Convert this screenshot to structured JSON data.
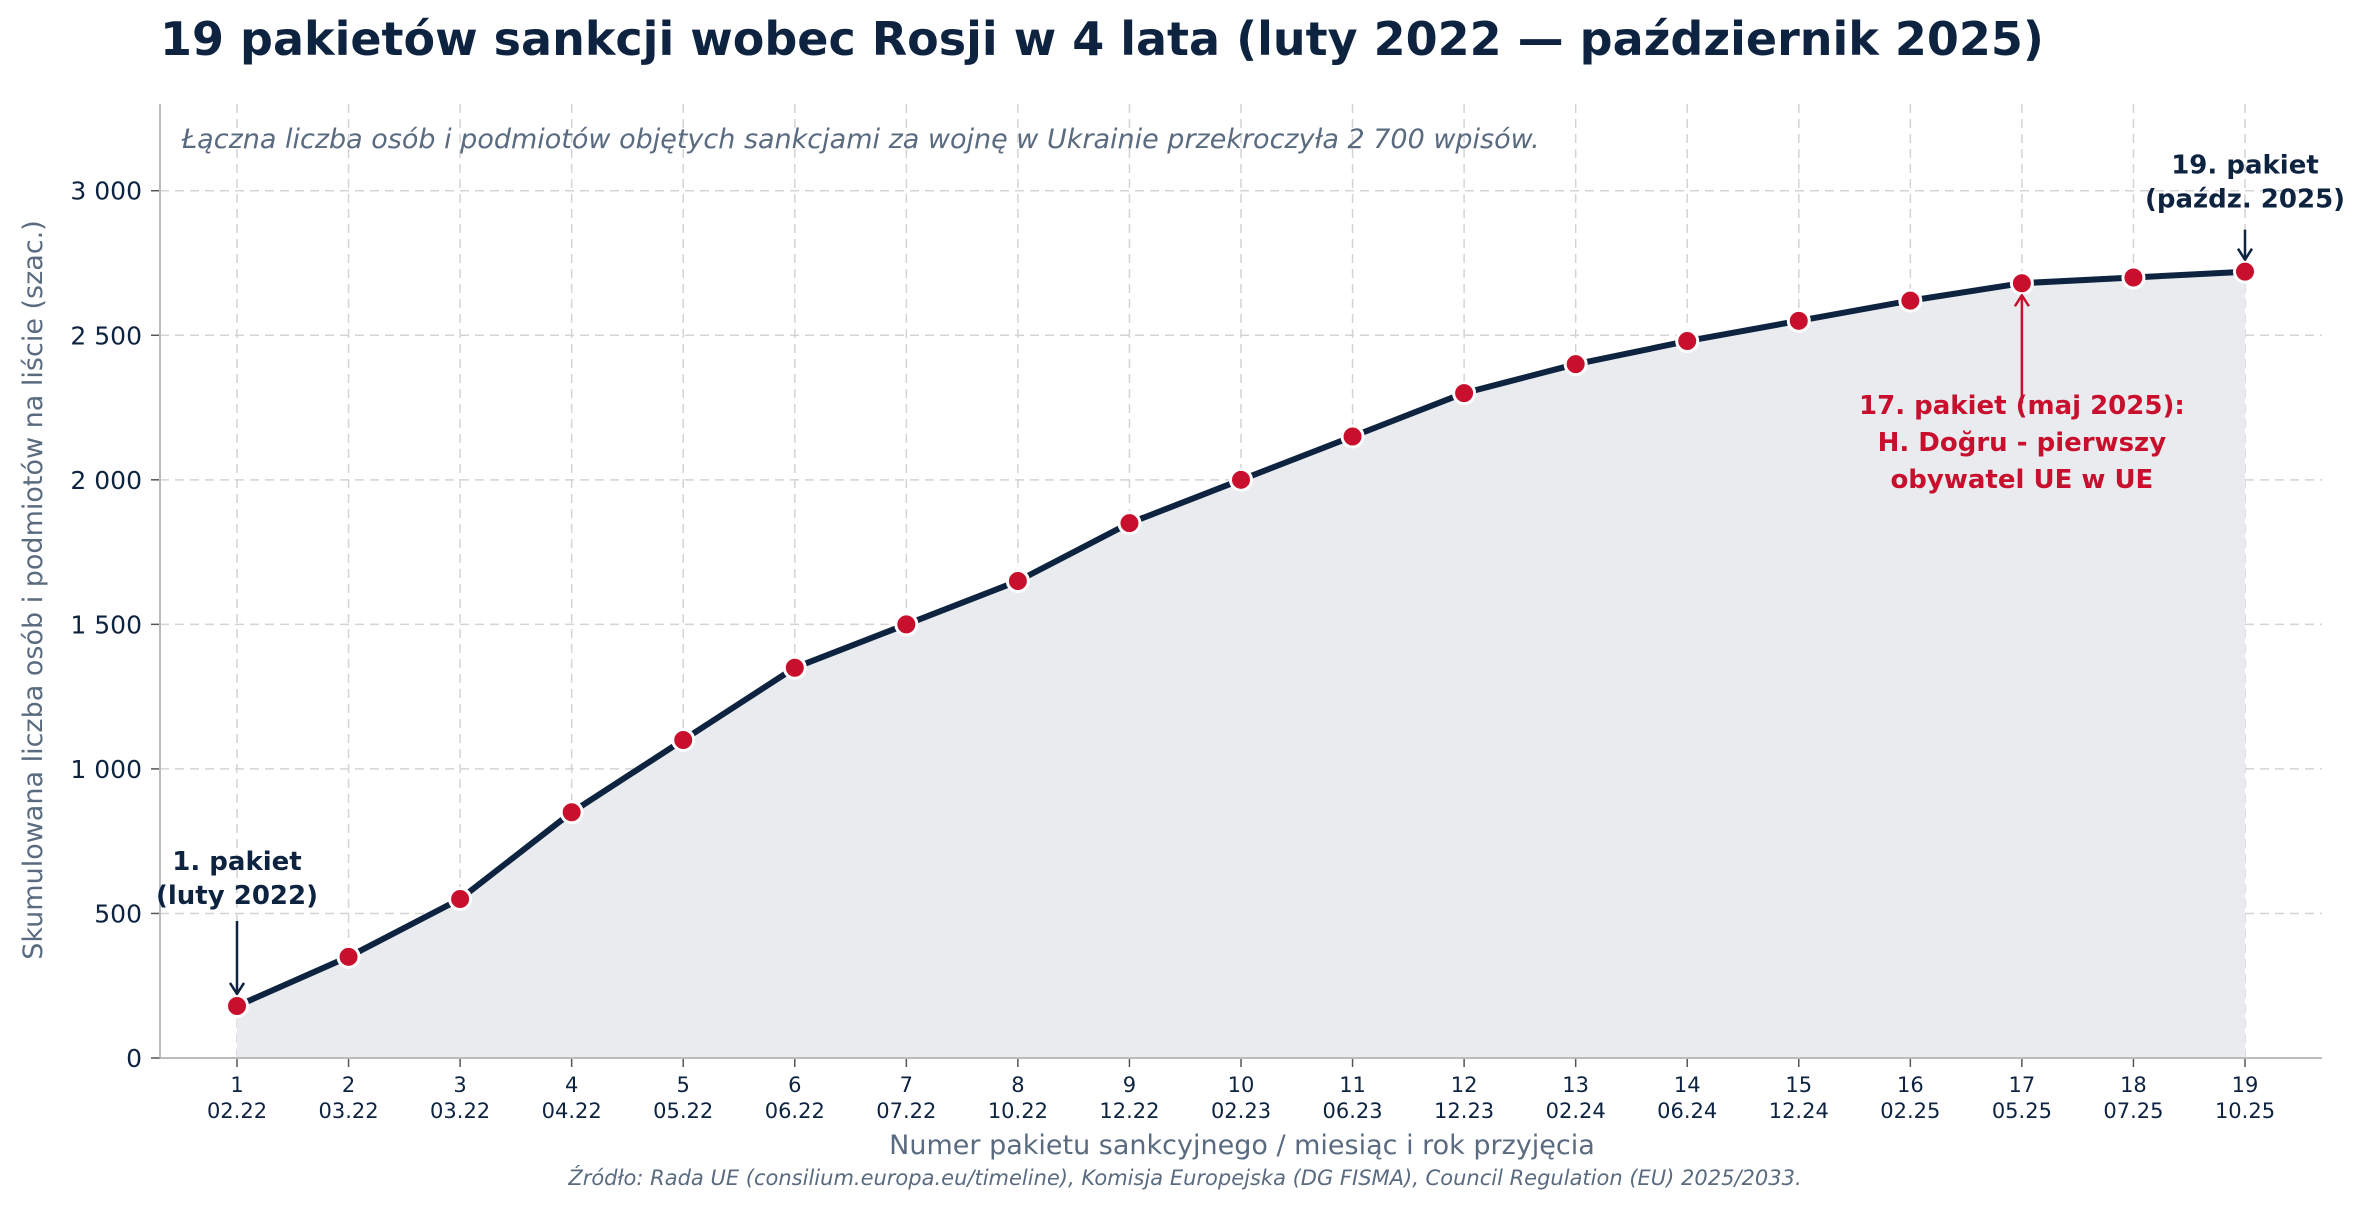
{
  "title": "19 pakietów sankcji wobec Rosji w 4 lata (luty 2022 — październik 2025)",
  "source": "Źródło: Rada UE (consilium.europa.eu/timeline), Komisja Europejska (DG FISMA), Council Regulation (EU) 2025/2033.",
  "colors": {
    "line": "#0d2340",
    "marker": "#c8102e",
    "fill": "#e9ebef",
    "grid": "#d4d4d4",
    "text": "#0d2340",
    "muted": "#5a6b80",
    "highlight": "#c8102e"
  },
  "chart_data": {
    "type": "area",
    "subtitle": "Łączna liczba osób i podmiotów objętych sankcjami za wojnę w Ukrainie przekroczyła 2 700 wpisów.",
    "xlabel": "Numer pakietu sankcyjnego / miesiąc i rok przyjęcia",
    "ylabel": "Skumulowana liczba osób i podmiotów na liście (szac.)",
    "ylim": [
      0,
      3300
    ],
    "yticks": [
      0,
      500,
      1000,
      1500,
      2000,
      2500,
      3000
    ],
    "ytick_labels": [
      "0",
      "500",
      "1 000",
      "1 500",
      "2 000",
      "2 500",
      "3 000"
    ],
    "grid": true,
    "x": [
      1,
      2,
      3,
      4,
      5,
      6,
      7,
      8,
      9,
      10,
      11,
      12,
      13,
      14,
      15,
      16,
      17,
      18,
      19
    ],
    "dates": [
      "02.22",
      "03.22",
      "03.22",
      "04.22",
      "05.22",
      "06.22",
      "07.22",
      "10.22",
      "12.22",
      "02.23",
      "06.23",
      "12.23",
      "02.24",
      "06.24",
      "12.24",
      "02.25",
      "05.25",
      "07.25",
      "10.25"
    ],
    "values": [
      180,
      350,
      550,
      850,
      1100,
      1350,
      1500,
      1650,
      1850,
      2000,
      2150,
      2300,
      2400,
      2480,
      2550,
      2620,
      2680,
      2700,
      2720
    ],
    "annotations": [
      {
        "x": 1,
        "lines": [
          "1. pakiet",
          "(luty 2022)"
        ],
        "style": "dark"
      },
      {
        "x": 19,
        "lines": [
          "19. pakiet",
          "(paźdz. 2025)"
        ],
        "style": "dark"
      },
      {
        "x": 17,
        "lines": [
          "17. pakiet (maj 2025):",
          "H. Doğru - pierwszy",
          "obywatel UE w UE"
        ],
        "style": "highlight"
      }
    ]
  }
}
